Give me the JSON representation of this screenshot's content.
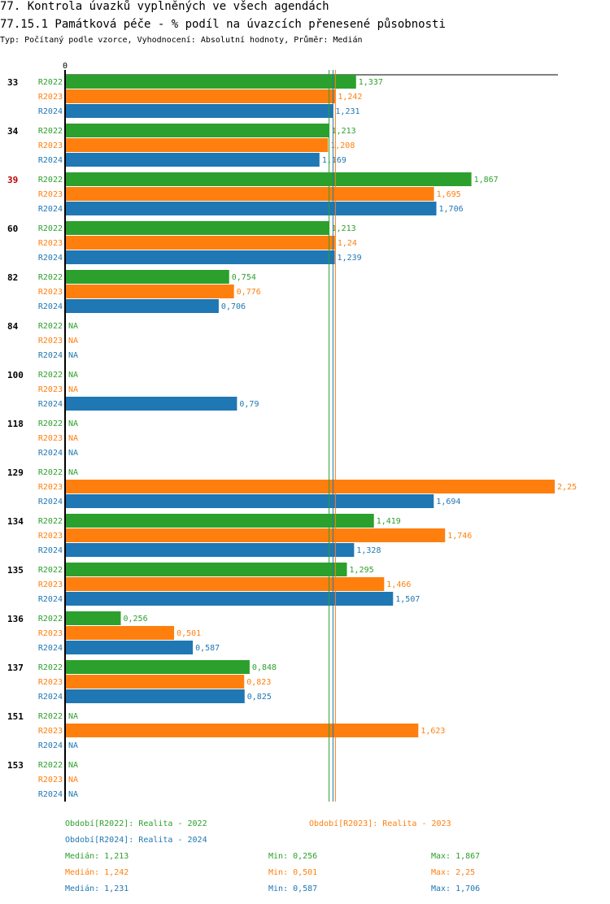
{
  "header": {
    "title": "77. Kontrola úvazků vyplněných ve všech agendách",
    "subtitle": "77.15.1 Památková péče - % podíl na úvazcích přenesené působnosti",
    "info": "Typ: Počítaný podle vzorce, Vyhodnocení: Absolutní hodnoty, Průměr: Medián"
  },
  "colors": {
    "R2022": "#2ca02c",
    "R2023": "#ff7f0e",
    "R2024": "#1f77b4",
    "highlight": "#c00000",
    "text": "#000000"
  },
  "chart_data": {
    "type": "bar",
    "orientation": "horizontal",
    "axis_zero_label": "0",
    "xlim": [
      0,
      2.25
    ],
    "na_label": "NA",
    "highlight_category": "39",
    "categories": [
      "33",
      "34",
      "39",
      "60",
      "82",
      "84",
      "100",
      "118",
      "129",
      "134",
      "135",
      "136",
      "137",
      "151",
      "153"
    ],
    "series": [
      {
        "name": "R2022",
        "values": [
          1.337,
          1.213,
          1.867,
          1.213,
          0.754,
          null,
          null,
          null,
          null,
          1.419,
          1.295,
          0.256,
          0.848,
          null,
          null
        ],
        "labels": [
          "1,337",
          "1,213",
          "1,867",
          "1,213",
          "0,754",
          "NA",
          "NA",
          "NA",
          "NA",
          "1,419",
          "1,295",
          "0,256",
          "0,848",
          "NA",
          "NA"
        ]
      },
      {
        "name": "R2023",
        "values": [
          1.242,
          1.208,
          1.695,
          1.24,
          0.776,
          null,
          null,
          null,
          2.25,
          1.746,
          1.466,
          0.501,
          0.823,
          1.623,
          null
        ],
        "labels": [
          "1,242",
          "1,208",
          "1,695",
          "1,24",
          "0,776",
          "NA",
          "NA",
          "NA",
          "2,25",
          "1,746",
          "1,466",
          "0,501",
          "0,823",
          "1,623",
          "NA"
        ]
      },
      {
        "name": "R2024",
        "values": [
          1.231,
          1.169,
          1.706,
          1.239,
          0.706,
          null,
          0.79,
          null,
          1.694,
          1.328,
          1.507,
          0.587,
          0.825,
          null,
          null
        ],
        "labels": [
          "1,231",
          "1,169",
          "1,706",
          "1,239",
          "0,706",
          "NA",
          "0,79",
          "NA",
          "1,694",
          "1,328",
          "1,507",
          "0,587",
          "0,825",
          "NA",
          "NA"
        ]
      }
    ],
    "medians": {
      "R2022": 1.213,
      "R2023": 1.242,
      "R2024": 1.231
    }
  },
  "legend": {
    "r2022": "Období[R2022]: Realita - 2022",
    "r2023": "Období[R2023]: Realita - 2023",
    "r2024": "Období[R2024]: Realita - 2024"
  },
  "stats": {
    "r2022": {
      "median": "Medián: 1,213",
      "min": "Min: 0,256",
      "max": "Max: 1,867"
    },
    "r2023": {
      "median": "Medián: 1,242",
      "min": "Min: 0,501",
      "max": "Max: 2,25"
    },
    "r2024": {
      "median": "Medián: 1,231",
      "min": "Min: 0,587",
      "max": "Max: 1,706"
    }
  }
}
